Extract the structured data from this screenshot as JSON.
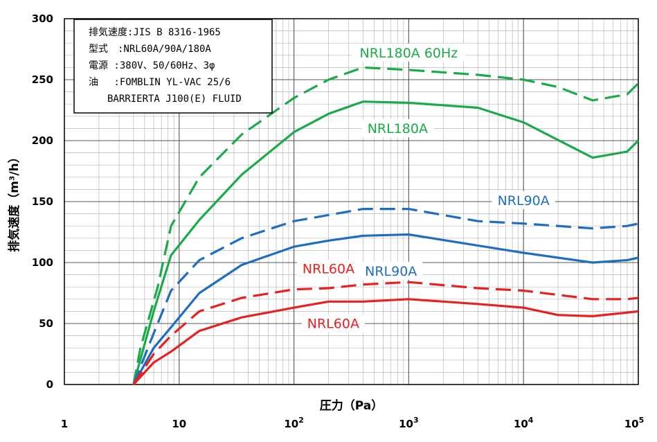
{
  "chart_data": {
    "type": "line",
    "xlabel": "圧力（Pa）",
    "ylabel": "排気速度（m³/h）",
    "xscale": "log",
    "xlim": [
      1,
      100000
    ],
    "ylim": [
      0,
      300
    ],
    "x_tick_labels": [
      {
        "value": 1,
        "base": "1",
        "exp": ""
      },
      {
        "value": 10,
        "base": "10",
        "exp": ""
      },
      {
        "value": 100,
        "base": "10",
        "exp": "2"
      },
      {
        "value": 1000,
        "base": "10",
        "exp": "3"
      },
      {
        "value": 10000,
        "base": "10",
        "exp": "4"
      },
      {
        "value": 100000,
        "base": "10",
        "exp": "5"
      }
    ],
    "y_ticks": [
      0,
      50,
      100,
      150,
      200,
      250,
      300
    ],
    "grid": true,
    "legend_box": {
      "placement": "top-left",
      "lines": [
        "排気速度:JIS B 8316-1965",
        "型式　:NRL60A/90A/180A",
        "電源 :380V、50/60Hz、3φ",
        "油　 :FOMBLIN YL-VAC 25/6",
        "BARRIERTA J100(E) FLUID"
      ]
    },
    "series": [
      {
        "name": "NRL180A 60Hz",
        "color": "#1aaa4a",
        "dash": true,
        "points": [
          [
            4,
            0
          ],
          [
            4.6,
            30
          ],
          [
            6.5,
            80
          ],
          [
            8.5,
            130
          ],
          [
            15,
            170
          ],
          [
            35,
            205
          ],
          [
            100,
            235
          ],
          [
            200,
            250
          ],
          [
            400,
            260
          ],
          [
            1000,
            258
          ],
          [
            4000,
            254
          ],
          [
            10000,
            250
          ],
          [
            20000,
            244
          ],
          [
            40000,
            233
          ],
          [
            80000,
            238
          ],
          [
            100000,
            247
          ]
        ]
      },
      {
        "name": "NRL180A",
        "color": "#1aaa4a",
        "dash": false,
        "points": [
          [
            4,
            0
          ],
          [
            6,
            60
          ],
          [
            8.5,
            106
          ],
          [
            15,
            135
          ],
          [
            35,
            172
          ],
          [
            100,
            207
          ],
          [
            200,
            222
          ],
          [
            400,
            232
          ],
          [
            1000,
            231
          ],
          [
            4000,
            227
          ],
          [
            10000,
            215
          ],
          [
            40000,
            186
          ],
          [
            80000,
            191
          ],
          [
            100000,
            200
          ]
        ]
      },
      {
        "name": "NRL90A",
        "color": "#1f6dc0",
        "dash": true,
        "points": [
          [
            4,
            0
          ],
          [
            6,
            42
          ],
          [
            8.5,
            77
          ],
          [
            15,
            102
          ],
          [
            35,
            120
          ],
          [
            100,
            134
          ],
          [
            400,
            144
          ],
          [
            1000,
            144
          ],
          [
            4000,
            134
          ],
          [
            10000,
            132
          ],
          [
            40000,
            128
          ],
          [
            80000,
            130
          ],
          [
            100000,
            132
          ]
        ]
      },
      {
        "name": "NRL90A",
        "color": "#1f6dc0",
        "dash": false,
        "points": [
          [
            4,
            0
          ],
          [
            6,
            30
          ],
          [
            8.5,
            47
          ],
          [
            15,
            75
          ],
          [
            35,
            98
          ],
          [
            100,
            113
          ],
          [
            200,
            118
          ],
          [
            400,
            122
          ],
          [
            1000,
            123
          ],
          [
            4000,
            114
          ],
          [
            10000,
            108
          ],
          [
            40000,
            100
          ],
          [
            80000,
            102
          ],
          [
            100000,
            104
          ]
        ]
      },
      {
        "name": "NRL60A",
        "color": "#e82020",
        "dash": true,
        "points": [
          [
            4,
            0
          ],
          [
            6,
            25
          ],
          [
            8.5,
            40
          ],
          [
            15,
            60
          ],
          [
            35,
            71
          ],
          [
            100,
            78
          ],
          [
            200,
            79
          ],
          [
            400,
            82
          ],
          [
            1000,
            84
          ],
          [
            4000,
            79
          ],
          [
            10000,
            77
          ],
          [
            40000,
            70
          ],
          [
            80000,
            70
          ],
          [
            100000,
            71
          ]
        ]
      },
      {
        "name": "NRL60A",
        "color": "#e82020",
        "dash": false,
        "points": [
          [
            4,
            0
          ],
          [
            6,
            18
          ],
          [
            8.5,
            27
          ],
          [
            15,
            44
          ],
          [
            35,
            55
          ],
          [
            100,
            63
          ],
          [
            200,
            68
          ],
          [
            400,
            68
          ],
          [
            1000,
            70
          ],
          [
            4000,
            66
          ],
          [
            10000,
            63
          ],
          [
            20000,
            57
          ],
          [
            40000,
            56
          ],
          [
            80000,
            59
          ],
          [
            100000,
            60
          ]
        ]
      }
    ],
    "series_labels": [
      {
        "text": "NRL180A 60Hz",
        "color": "#1aaa4a",
        "x": 1000,
        "y": 270
      },
      {
        "text": "NRL180A",
        "color": "#1aaa4a",
        "x": 800,
        "y": 208
      },
      {
        "text": "NRL90A",
        "color": "#1f6dc0",
        "x": 10000,
        "y": 149
      },
      {
        "text": "NRL90A",
        "color": "#1f6dc0",
        "x": 700,
        "y": 91
      },
      {
        "text": "NRL60A",
        "color": "#e82020",
        "x": 200,
        "y": 93
      },
      {
        "text": "NRL60A",
        "color": "#e82020",
        "x": 220,
        "y": 48
      }
    ]
  }
}
